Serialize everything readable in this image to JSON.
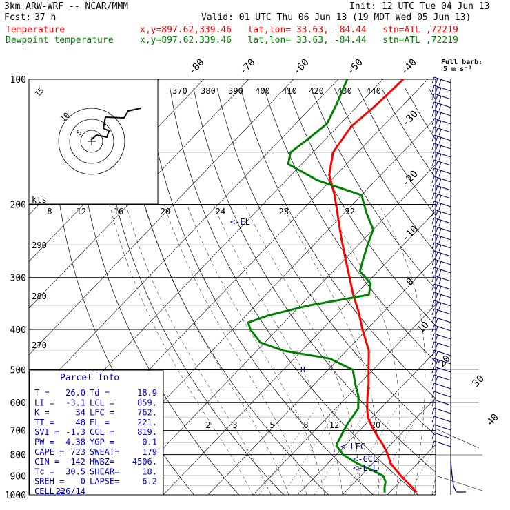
{
  "header": {
    "title": "3km ARW-WRF -- NCAR/MMM",
    "init": "Init: 12 UTC Tue 04 Jun 13",
    "fcst_label": "Fcst:",
    "fcst_value": "37 h",
    "valid": "Valid: 01 UTC Thu 06 Jun 13 (19 MDT Wed 05 Jun 13)",
    "temp_label": "Temperature",
    "dew_label": "Dewpoint temperature",
    "temp_loc": "x,y=897.62,339.46   lat,lon= 33.63, -84.44   stn=ATL ,72219",
    "dew_loc": "x,y=897.62,339.46   lat,lon= 33.63, -84.44   stn=ATL ,72219"
  },
  "colors": {
    "temperature": "#ff0000",
    "dewpoint": "#008000",
    "parcel_info": "#0000cc",
    "wind": "#000080"
  },
  "barb_legend": {
    "line1": "Full barb:",
    "line2": "5 m s⁻¹"
  },
  "hodograph": {
    "unit": "kts",
    "rings": [
      "5",
      "10",
      "15"
    ]
  },
  "parcel": {
    "title": "Parcel Info",
    "rows": [
      [
        "T  =",
        "26.0",
        "Td =",
        "18.9"
      ],
      [
        "LI =",
        "-3.1",
        "LCL =",
        "859."
      ],
      [
        "K  =",
        "34",
        "LFC =",
        "762."
      ],
      [
        "TT =",
        "48",
        "EL  =",
        "221."
      ],
      [
        "SVI =",
        "-1.3",
        "CCL =",
        "819."
      ],
      [
        "PW =",
        "4.38",
        "YGP =",
        "0.1"
      ],
      [
        "CAPE =",
        "723",
        "SWEAT=",
        "179"
      ],
      [
        "CIN =",
        "-142",
        "HWBZ=",
        "4506."
      ],
      [
        "Tc =",
        "30.5",
        "SHEAR=",
        "18."
      ],
      [
        "SREH =",
        "0",
        "LAPSE=",
        "6.2"
      ],
      [
        "CELL =",
        "226/14",
        "",
        ""
      ]
    ]
  },
  "chart_data": {
    "type": "line",
    "title": "",
    "xlabel": "",
    "ylabel": "",
    "y_scale": "log-pressure (hPa)",
    "pressure_ticks": [
      100,
      200,
      300,
      400,
      500,
      600,
      700,
      800,
      900,
      1000
    ],
    "isotherm_labels": [
      "-80",
      "-70",
      "-60",
      "-50",
      "-40",
      "-30",
      "-20",
      "-10",
      "0",
      "10",
      "20",
      "30",
      "40"
    ],
    "theta_labels_top": [
      "370",
      "380",
      "390",
      "400",
      "410",
      "420",
      "430",
      "440"
    ],
    "theta_labels_left": [
      "290",
      "280",
      "270"
    ],
    "mixing_ratio_labels": [
      "2",
      "3",
      "5",
      "8",
      "12",
      "20"
    ],
    "wind_speed_scale": [
      "8",
      "12",
      "16",
      "20",
      "24",
      "28",
      "32"
    ],
    "level_markers": [
      "<-EL",
      "<-LFC",
      "<-CCL",
      "<-LCL"
    ],
    "series": [
      {
        "name": "Temperature",
        "pressure": [
          987,
          960,
          930,
          900,
          870,
          840,
          800,
          760,
          720,
          680,
          650,
          620,
          580,
          540,
          500,
          450,
          400,
          360,
          330,
          300,
          270,
          240,
          210,
          190,
          170,
          150,
          130,
          115,
          100
        ],
        "temperature": [
          26.0,
          24.0,
          21.5,
          19.0,
          16.5,
          14.0,
          11.5,
          8.5,
          5.0,
          1.5,
          -1.0,
          -3.0,
          -5.5,
          -8.0,
          -11.0,
          -15.0,
          -21.0,
          -26.0,
          -30.5,
          -35.0,
          -40.0,
          -45.5,
          -51.5,
          -56.0,
          -61.5,
          -65.5,
          -67.0,
          -66.0,
          -65.5
        ]
      },
      {
        "name": "Dewpoint temperature",
        "pressure": [
          987,
          960,
          930,
          900,
          870,
          840,
          800,
          760,
          720,
          680,
          650,
          620,
          580,
          540,
          500,
          470,
          450,
          430,
          400,
          385,
          370,
          350,
          330,
          310,
          290,
          270,
          250,
          230,
          210,
          190,
          175,
          160,
          150,
          140,
          128,
          115,
          100
        ],
        "dewpoint": [
          18.9,
          17.8,
          16.8,
          15.0,
          11.0,
          6.5,
          1.5,
          -2.0,
          -3.0,
          -4.0,
          -4.5,
          -5.0,
          -7.5,
          -11.0,
          -14.5,
          -22.0,
          -34.0,
          -41.0,
          -46.0,
          -48.0,
          -45.0,
          -38.0,
          -27.0,
          -29.0,
          -34.0,
          -36.0,
          -38.0,
          -40.0,
          -45.0,
          -50.0,
          -63.0,
          -73.0,
          -75.0,
          -74.0,
          -73.0,
          -75.0,
          -78.0
        ]
      }
    ]
  }
}
